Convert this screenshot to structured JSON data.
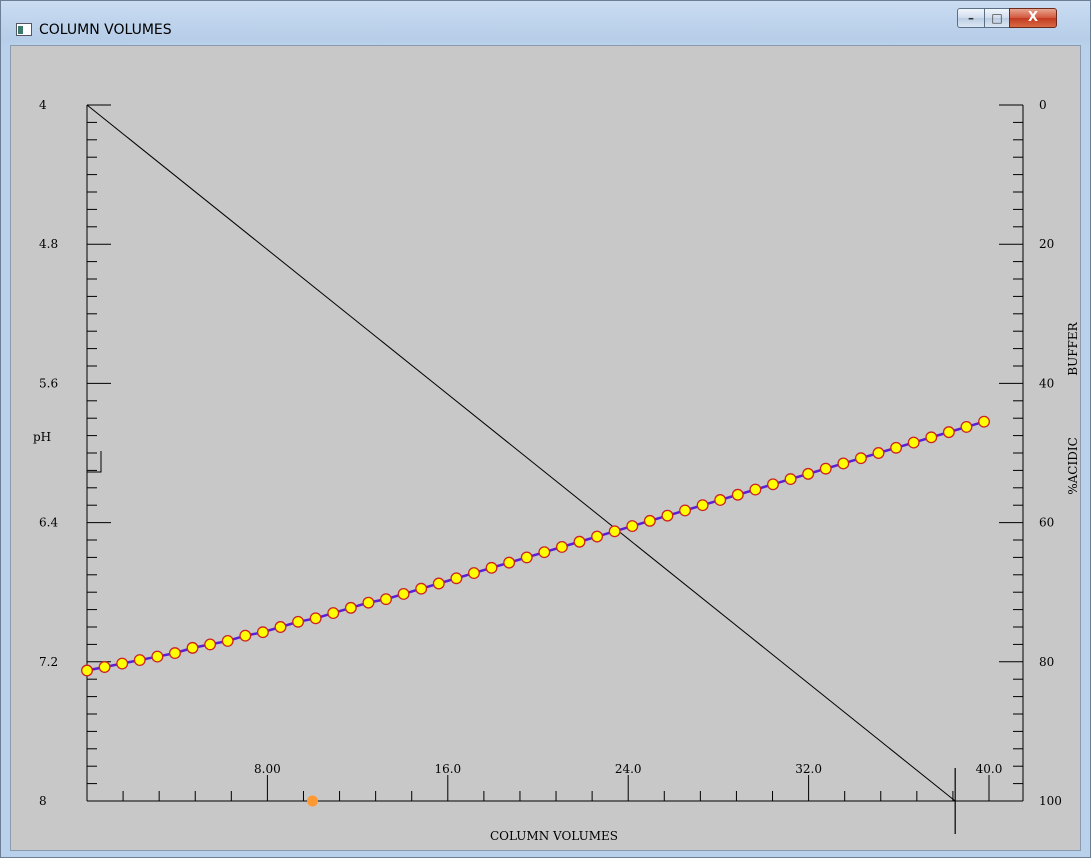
{
  "window": {
    "title": "COLUMN VOLUMES",
    "minimize_label": "–",
    "maximize_label": "□",
    "close_label": "X"
  },
  "chart_data": {
    "type": "line",
    "title": "",
    "xlabel": "COLUMN VOLUMES",
    "ylabel_left": "pH",
    "ylabel_right_top": "BUFFER",
    "ylabel_right_bottom": "%ACIDIC",
    "xlim": [
      0,
      41
    ],
    "x_ticks": [
      "8.00",
      "16.0",
      "24.0",
      "32.0",
      "40.0"
    ],
    "x_tick_values": [
      8,
      16,
      24,
      32,
      40
    ],
    "y_left_lim": [
      4,
      8
    ],
    "y_left_inverted": true,
    "y_left_ticks": [
      "4",
      "4.8",
      "5.6",
      "6.4",
      "7.2",
      "8"
    ],
    "y_left_tick_values": [
      4,
      4.8,
      5.6,
      6.4,
      7.2,
      8
    ],
    "y_right_lim": [
      0,
      100
    ],
    "y_right_inverted": true,
    "y_right_ticks": [
      "0",
      "20",
      "40",
      "60",
      "80",
      "100"
    ],
    "y_right_tick_values": [
      0,
      20,
      40,
      60,
      80,
      100
    ],
    "colors": {
      "background": "#c8c8c8",
      "gradient_line": "#000000",
      "ph_line": "#5a1fd6",
      "marker_fill": "#ffff00",
      "marker_edge": "#cc2222",
      "indicator": "#ff9933"
    },
    "series": [
      {
        "axis": "right",
        "x": [
          0,
          38.5
        ],
        "values": [
          0,
          100
        ]
      },
      {
        "axis": "left",
        "x": [
          0,
          0.78,
          1.56,
          2.34,
          3.12,
          3.9,
          4.68,
          5.46,
          6.24,
          7.02,
          7.8,
          8.58,
          9.36,
          10.14,
          10.92,
          11.7,
          12.48,
          13.26,
          14.04,
          14.82,
          15.6,
          16.38,
          17.16,
          17.94,
          18.72,
          19.5,
          20.28,
          21.06,
          21.84,
          22.62,
          23.4,
          24.18,
          24.96,
          25.74,
          26.52,
          27.3,
          28.08,
          28.86,
          29.64,
          30.42,
          31.2,
          31.98,
          32.76,
          33.54,
          34.32,
          35.1,
          35.88,
          36.66,
          37.44,
          38.22,
          39.0,
          39.78
        ],
        "values": [
          7.25,
          7.23,
          7.21,
          7.19,
          7.17,
          7.15,
          7.12,
          7.1,
          7.08,
          7.05,
          7.03,
          7.0,
          6.97,
          6.95,
          6.92,
          6.89,
          6.86,
          6.84,
          6.81,
          6.78,
          6.75,
          6.72,
          6.69,
          6.66,
          6.63,
          6.6,
          6.57,
          6.54,
          6.51,
          6.48,
          6.45,
          6.42,
          6.39,
          6.36,
          6.33,
          6.3,
          6.27,
          6.24,
          6.21,
          6.18,
          6.15,
          6.12,
          6.09,
          6.06,
          6.03,
          6.0,
          5.97,
          5.94,
          5.91,
          5.88,
          5.85,
          5.82
        ]
      }
    ],
    "cursor_x": 38.5,
    "indicator_x": 10
  }
}
